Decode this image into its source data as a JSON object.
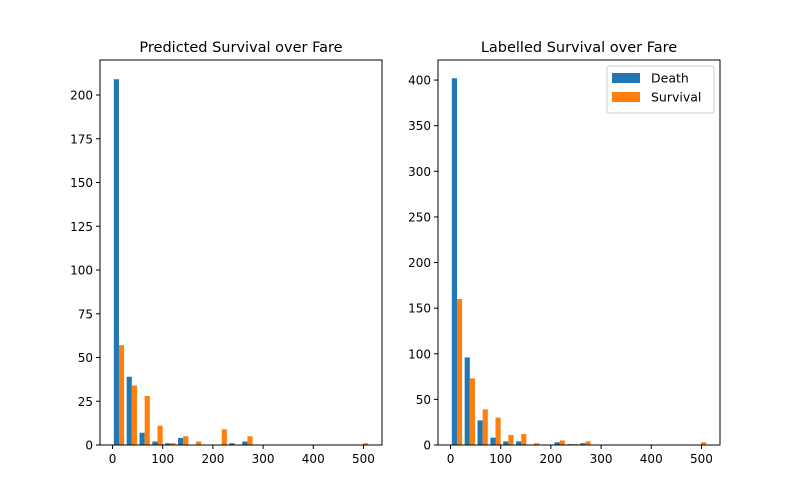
{
  "chart_data": [
    {
      "type": "bar",
      "title": "Predicted Survival over Fare",
      "xlabel": "",
      "ylabel": "",
      "xlim": [
        -25,
        537
      ],
      "ylim": [
        0,
        220
      ],
      "xticks": [
        0,
        100,
        200,
        300,
        400,
        500
      ],
      "yticks": [
        0,
        25,
        50,
        75,
        100,
        125,
        150,
        175,
        200
      ],
      "bin_width": 25.6,
      "bin_starts": [
        0,
        25.6,
        51.2,
        76.8,
        102.4,
        128,
        153.6,
        179.2,
        204.8,
        230.4,
        256,
        281.6,
        307.2,
        332.8,
        358.4,
        384,
        409.6,
        435.2,
        460.8,
        486.4
      ],
      "series": [
        {
          "name": "Death",
          "color": "#1f77b4",
          "values": [
            209,
            39,
            7,
            2,
            1,
            4,
            0,
            0,
            0,
            1,
            2,
            0,
            0,
            0,
            0,
            0,
            0,
            0,
            0,
            0
          ]
        },
        {
          "name": "Survival",
          "color": "#ff7f0e",
          "values": [
            57,
            34,
            28,
            11,
            1,
            5,
            2,
            0,
            9,
            0,
            5,
            0,
            0,
            0,
            0,
            0,
            0,
            0,
            0,
            1
          ]
        }
      ],
      "legend": null,
      "grid": false
    },
    {
      "type": "bar",
      "title": "Labelled Survival over Fare",
      "xlabel": "",
      "ylabel": "",
      "xlim": [
        -25,
        537
      ],
      "ylim": [
        0,
        422
      ],
      "xticks": [
        0,
        100,
        200,
        300,
        400,
        500
      ],
      "yticks": [
        0,
        50,
        100,
        150,
        200,
        250,
        300,
        350,
        400
      ],
      "bin_width": 25.6,
      "bin_starts": [
        0,
        25.6,
        51.2,
        76.8,
        102.4,
        128,
        153.6,
        179.2,
        204.8,
        230.4,
        256,
        281.6,
        307.2,
        332.8,
        358.4,
        384,
        409.6,
        435.2,
        460.8,
        486.4
      ],
      "series": [
        {
          "name": "Death",
          "color": "#1f77b4",
          "values": [
            402,
            96,
            27,
            8,
            4,
            4,
            0,
            0,
            3,
            1,
            2,
            0,
            0,
            0,
            0,
            0,
            0,
            0,
            0,
            0
          ]
        },
        {
          "name": "Survival",
          "color": "#ff7f0e",
          "values": [
            160,
            73,
            39,
            30,
            11,
            12,
            2,
            0,
            5,
            1,
            4,
            0,
            0,
            0,
            0,
            0,
            0,
            0,
            0,
            3
          ]
        }
      ],
      "legend": {
        "placement": "top-right",
        "entries": [
          "Death",
          "Survival"
        ]
      },
      "grid": false
    }
  ]
}
